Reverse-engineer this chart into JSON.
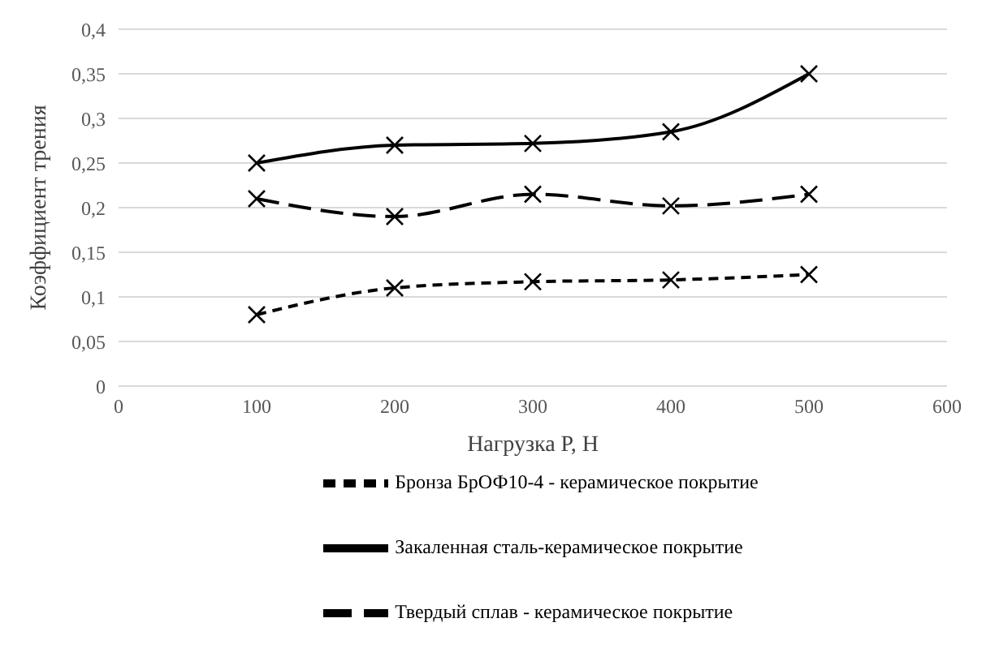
{
  "chart_data": {
    "type": "line",
    "xlabel": "Нагрузка Р, Н",
    "ylabel": "Коэффициент трения",
    "x": [
      100,
      200,
      300,
      400,
      500
    ],
    "series": [
      {
        "name": "Закаленная сталь-керамическое покрытие",
        "color": "#000000",
        "values": [
          0.25,
          0.27,
          0.272,
          0.285,
          0.35
        ],
        "line_style": "solid"
      },
      {
        "name": "Твердый сплав - керамическое покрытие",
        "color": "#000000",
        "values": [
          0.21,
          0.19,
          0.215,
          0.202,
          0.215
        ],
        "line_style": "dashed"
      },
      {
        "name": "Бронза БрОФ10-4  - керамическое покрытие",
        "color": "#000000",
        "values": [
          0.08,
          0.11,
          0.117,
          0.119,
          0.125
        ],
        "line_style": "dotted"
      }
    ],
    "xlim": [
      0,
      600
    ],
    "xticks": [
      0,
      100,
      200,
      300,
      400,
      500,
      600
    ],
    "ylim": [
      0,
      0.4
    ],
    "yticks": [
      {
        "value": 0,
        "label": "0"
      },
      {
        "value": 0.05,
        "label": "0,05"
      },
      {
        "value": 0.1,
        "label": "0,1"
      },
      {
        "value": 0.15,
        "label": "0,15"
      },
      {
        "value": 0.2,
        "label": "0,2"
      },
      {
        "value": 0.25,
        "label": "0,25"
      },
      {
        "value": 0.3,
        "label": "0,3"
      },
      {
        "value": 0.35,
        "label": "0,35"
      },
      {
        "value": 0.4,
        "label": "0,4"
      }
    ],
    "grid": "y",
    "legend": "bottom",
    "marker": "cross"
  }
}
